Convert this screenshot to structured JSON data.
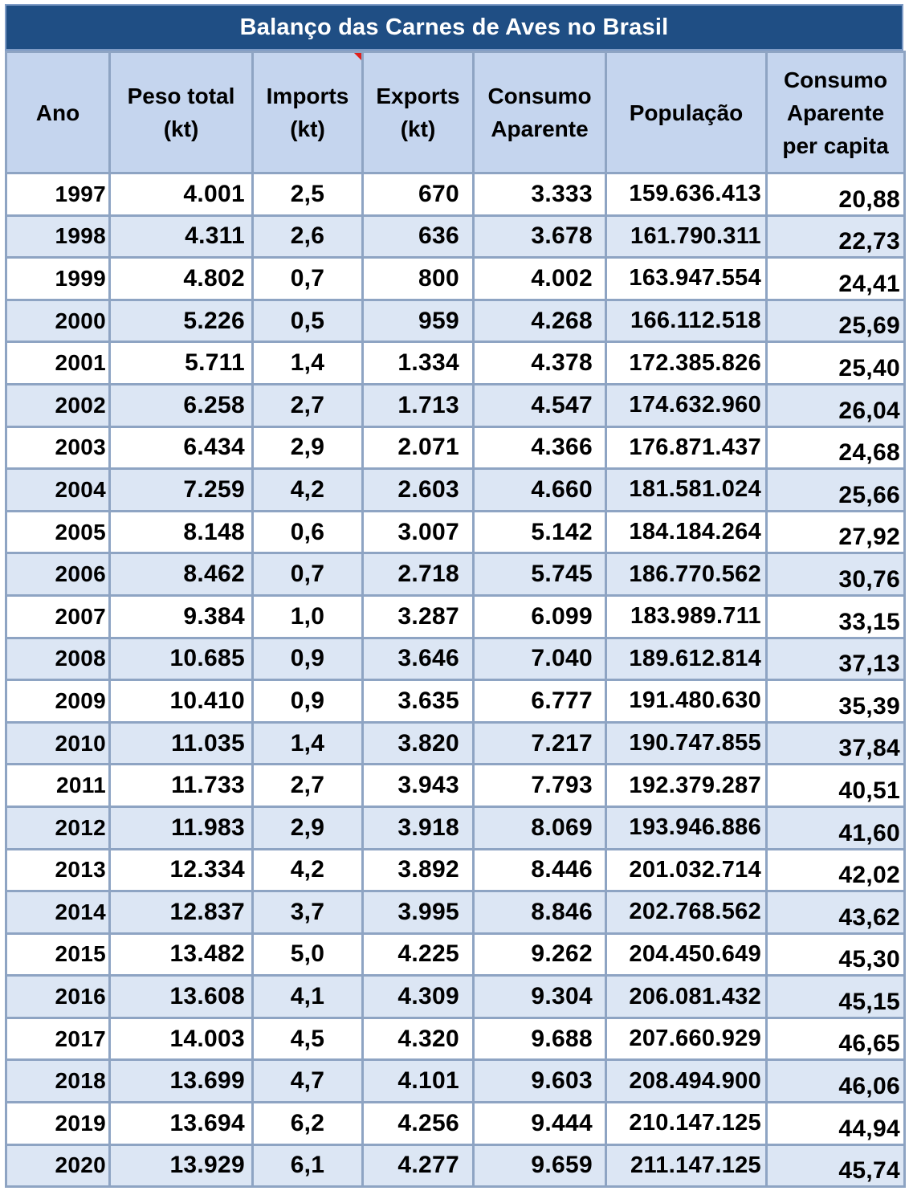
{
  "title": "Balanço das Carnes de Aves no Brasil",
  "headers": {
    "ano": "Ano",
    "peso_total": [
      "Peso total",
      "(kt)"
    ],
    "imports": [
      "Imports",
      "(kt)"
    ],
    "exports": [
      "Exports",
      "(kt)"
    ],
    "consumo": [
      "Consumo",
      "Aparente"
    ],
    "populacao": "População",
    "per_capita": [
      "Consumo",
      "Aparente",
      "per capita"
    ]
  },
  "rows": [
    [
      "1997",
      "4.001",
      "2,5",
      "670",
      "3.333",
      "159.636.413",
      "20,88"
    ],
    [
      "1998",
      "4.311",
      "2,6",
      "636",
      "3.678",
      "161.790.311",
      "22,73"
    ],
    [
      "1999",
      "4.802",
      "0,7",
      "800",
      "4.002",
      "163.947.554",
      "24,41"
    ],
    [
      "2000",
      "5.226",
      "0,5",
      "959",
      "4.268",
      "166.112.518",
      "25,69"
    ],
    [
      "2001",
      "5.711",
      "1,4",
      "1.334",
      "4.378",
      "172.385.826",
      "25,40"
    ],
    [
      "2002",
      "6.258",
      "2,7",
      "1.713",
      "4.547",
      "174.632.960",
      "26,04"
    ],
    [
      "2003",
      "6.434",
      "2,9",
      "2.071",
      "4.366",
      "176.871.437",
      "24,68"
    ],
    [
      "2004",
      "7.259",
      "4,2",
      "2.603",
      "4.660",
      "181.581.024",
      "25,66"
    ],
    [
      "2005",
      "8.148",
      "0,6",
      "3.007",
      "5.142",
      "184.184.264",
      "27,92"
    ],
    [
      "2006",
      "8.462",
      "0,7",
      "2.718",
      "5.745",
      "186.770.562",
      "30,76"
    ],
    [
      "2007",
      "9.384",
      "1,0",
      "3.287",
      "6.099",
      "183.989.711",
      "33,15"
    ],
    [
      "2008",
      "10.685",
      "0,9",
      "3.646",
      "7.040",
      "189.612.814",
      "37,13"
    ],
    [
      "2009",
      "10.410",
      "0,9",
      "3.635",
      "6.777",
      "191.480.630",
      "35,39"
    ],
    [
      "2010",
      "11.035",
      "1,4",
      "3.820",
      "7.217",
      "190.747.855",
      "37,84"
    ],
    [
      "2011",
      "11.733",
      "2,7",
      "3.943",
      "7.793",
      "192.379.287",
      "40,51"
    ],
    [
      "2012",
      "11.983",
      "2,9",
      "3.918",
      "8.069",
      "193.946.886",
      "41,60"
    ],
    [
      "2013",
      "12.334",
      "4,2",
      "3.892",
      "8.446",
      "201.032.714",
      "42,02"
    ],
    [
      "2014",
      "12.837",
      "3,7",
      "3.995",
      "8.846",
      "202.768.562",
      "43,62"
    ],
    [
      "2015",
      "13.482",
      "5,0",
      "4.225",
      "9.262",
      "204.450.649",
      "45,30"
    ],
    [
      "2016",
      "13.608",
      "4,1",
      "4.309",
      "9.304",
      "206.081.432",
      "45,15"
    ],
    [
      "2017",
      "14.003",
      "4,5",
      "4.320",
      "9.688",
      "207.660.929",
      "46,65"
    ],
    [
      "2018",
      "13.699",
      "4,7",
      "4.101",
      "9.603",
      "208.494.900",
      "46,06"
    ],
    [
      "2019",
      "13.694",
      "6,2",
      "4.256",
      "9.444",
      "210.147.125",
      "44,94"
    ],
    [
      "2020",
      "13.929",
      "6,1",
      "4.277",
      "9.659",
      "211.147.125",
      "45,74"
    ]
  ]
}
